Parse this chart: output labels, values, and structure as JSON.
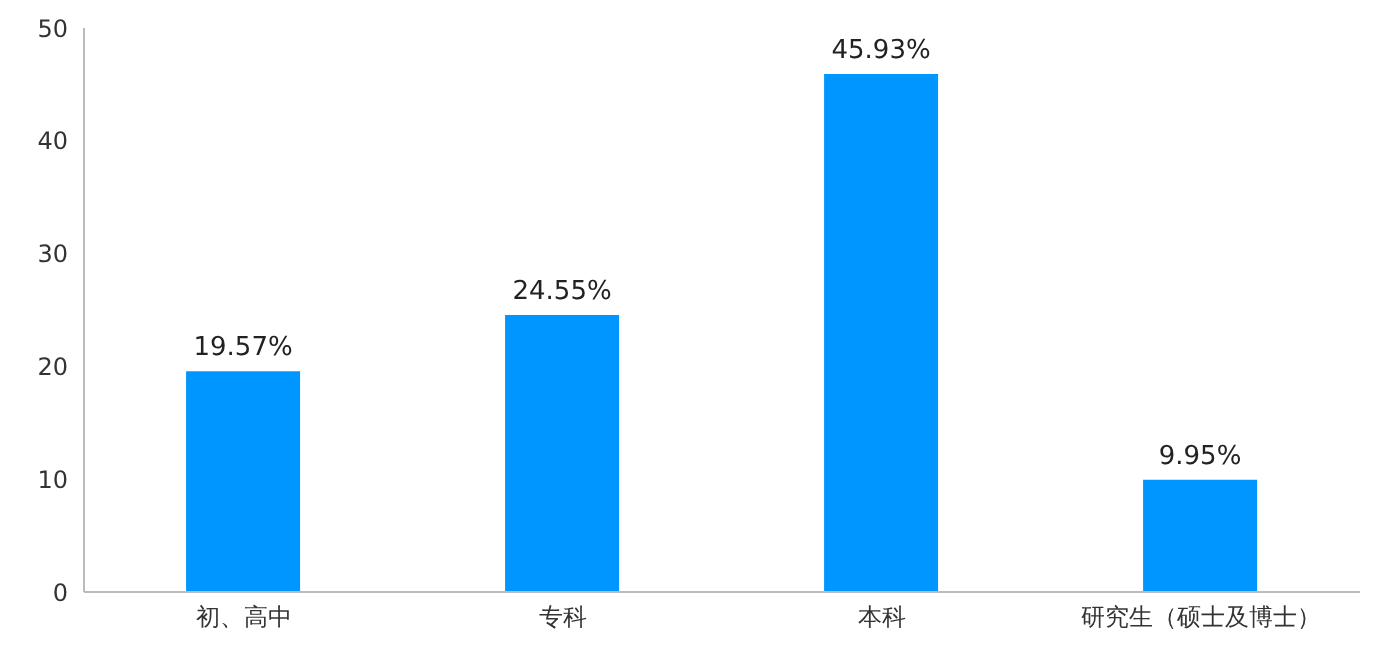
{
  "chart_data": {
    "type": "bar",
    "categories": [
      "初、高中",
      "专科",
      "本科",
      "研究生（硕士及博士）"
    ],
    "values": [
      19.57,
      24.55,
      45.93,
      9.95
    ],
    "value_labels": [
      "19.57%",
      "24.55%",
      "45.93%",
      "9.95%"
    ],
    "color": "#0096ff",
    "ylim": [
      0,
      50
    ],
    "yticks": [
      0,
      10,
      20,
      30,
      40,
      50
    ],
    "grid": false
  }
}
